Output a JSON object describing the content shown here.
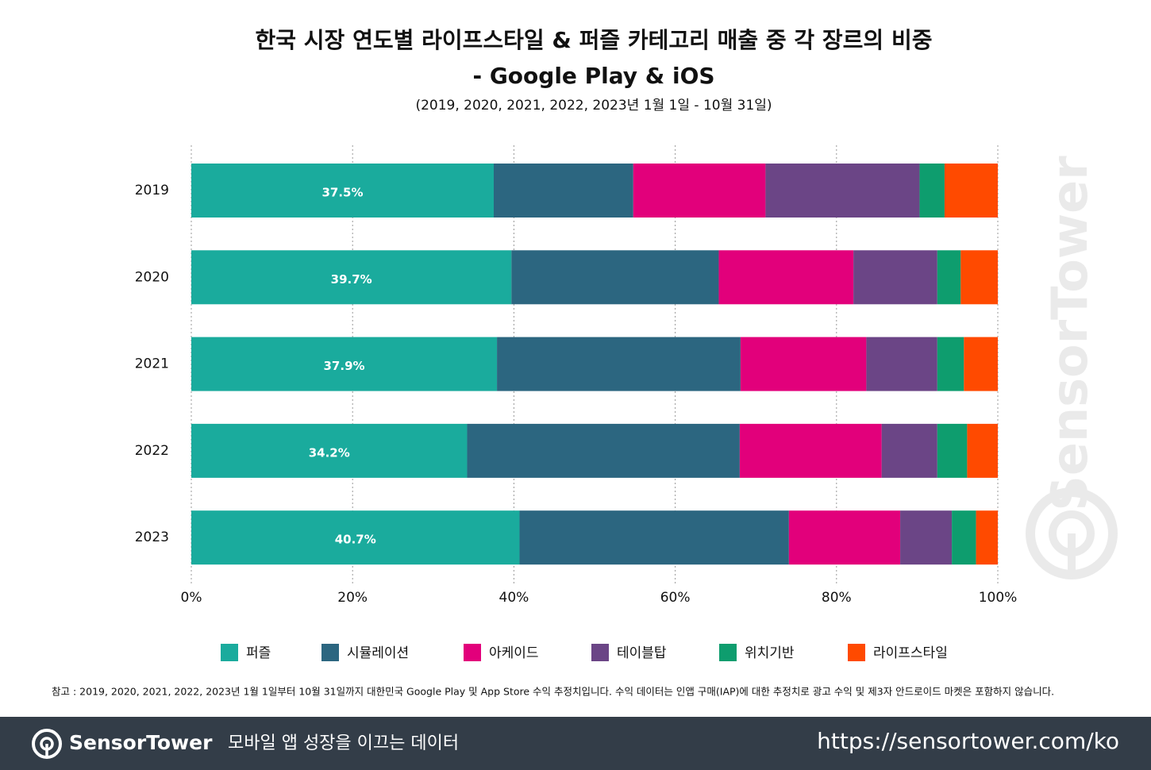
{
  "chart_data": {
    "type": "stacked_barh",
    "title": [
      "한국 시장 연도별 라이프스타일 & 퍼즐 카테고리 매출 중 각 장르의 비중",
      "- Google Play & iOS"
    ],
    "subtitle": "(2019, 2020, 2021, 2022, 2023년 1월 1일 - 10월 31일)",
    "categories": [
      "2019",
      "2020",
      "2021",
      "2022",
      "2023"
    ],
    "series": [
      {
        "name": "퍼즐",
        "color": "#1aab9d",
        "values": [
          37.5,
          39.7,
          37.9,
          34.2,
          40.7
        ],
        "value_labels": [
          "37.5%",
          "39.7%",
          "37.9%",
          "34.2%",
          "40.7%"
        ]
      },
      {
        "name": "시뮬레이션",
        "color": "#2c6680",
        "values": [
          17.3,
          25.7,
          30.2,
          33.8,
          33.4
        ]
      },
      {
        "name": "아케이드",
        "color": "#e2007b",
        "values": [
          16.4,
          16.7,
          15.6,
          17.6,
          13.8
        ]
      },
      {
        "name": "테이블탑",
        "color": "#6b4586",
        "values": [
          19.1,
          10.4,
          8.8,
          6.9,
          6.4
        ]
      },
      {
        "name": "위치기반",
        "color": "#0e9d6e",
        "values": [
          3.1,
          2.9,
          3.3,
          3.7,
          3.0
        ]
      },
      {
        "name": "라이프스타일",
        "color": "#ff4a00",
        "values": [
          6.6,
          4.6,
          4.2,
          3.8,
          2.7
        ]
      }
    ],
    "xlim": [
      0,
      100
    ],
    "xticks": [
      {
        "value": 0,
        "label": "0%"
      },
      {
        "value": 20,
        "label": "20%"
      },
      {
        "value": 40,
        "label": "40%"
      },
      {
        "value": 60,
        "label": "60%"
      },
      {
        "value": 80,
        "label": "80%"
      },
      {
        "value": 100,
        "label": "100%"
      }
    ],
    "grid": true,
    "legend": "bottom",
    "note": "참고 : 2019, 2020, 2021, 2022, 2023년 1월 1일부터 10월 31일까지 대한민국 Google Play 및 App Store 수익 추정치입니다. 수익 데이터는 인앱 구매(IAP)에 대한 추정치로 광고 수익 및 제3자 안드로이드 마켓은 포함하지 않습니다."
  },
  "watermark": "SensorTower",
  "footer": {
    "brand": "SensorTower",
    "tagline": "모바일 앱 성장을 이끄는 데이터",
    "url": "https://sensortower.com/ko"
  }
}
